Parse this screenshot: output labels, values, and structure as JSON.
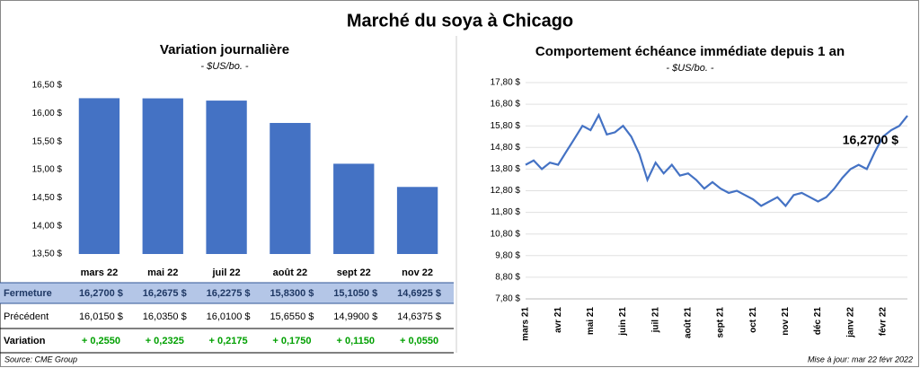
{
  "title": "Marché du soya à Chicago",
  "source": "Source: CME Group",
  "updated": "Mise à jour: mar 22 févr 2022",
  "chart_data": [
    {
      "type": "bar",
      "title": "Variation journalière",
      "subtitle": "- $US/bo. -",
      "categories": [
        "mars 22",
        "mai 22",
        "juil 22",
        "août 22",
        "sept 22",
        "nov 22"
      ],
      "values": [
        16.27,
        16.2675,
        16.2275,
        15.83,
        15.105,
        14.6925
      ],
      "value_labels": [
        "16,2700 $",
        "16,2675 $",
        "16,2275 $",
        "15,8300 $",
        "15,1050 $",
        "14,6925 $"
      ],
      "color": "#4472c4",
      "ylim": [
        13.5,
        16.5
      ],
      "yticks": [
        {
          "value": 13.5,
          "label": "13,50 $"
        },
        {
          "value": 14.0,
          "label": "14,00 $"
        },
        {
          "value": 14.5,
          "label": "14,50 $"
        },
        {
          "value": 15.0,
          "label": "15,00 $"
        },
        {
          "value": 15.5,
          "label": "15,50 $"
        },
        {
          "value": 16.0,
          "label": "16,00 $"
        },
        {
          "value": 16.5,
          "label": "16,50 $"
        }
      ]
    },
    {
      "type": "line",
      "title": "Comportement  échéance immédiate depuis 1 an",
      "subtitle": "- $US/bo. -",
      "annotation": "16,2700 $",
      "categories": [
        "mars 21",
        null,
        null,
        null,
        "avr 21",
        null,
        null,
        null,
        "mai 21",
        null,
        null,
        null,
        "juin 21",
        null,
        null,
        null,
        "juil 21",
        null,
        null,
        null,
        "août 21",
        null,
        null,
        null,
        "sept 21",
        null,
        null,
        null,
        "oct 21",
        null,
        null,
        null,
        "nov 21",
        null,
        null,
        null,
        "déc 21",
        null,
        null,
        null,
        "janv 22",
        null,
        null,
        null,
        "févr 22",
        null,
        null,
        null
      ],
      "values": [
        14.0,
        14.2,
        13.8,
        14.1,
        14.0,
        14.6,
        15.2,
        15.8,
        15.6,
        16.3,
        15.4,
        15.5,
        15.8,
        15.3,
        14.5,
        13.3,
        14.1,
        13.6,
        14.0,
        13.5,
        13.6,
        13.3,
        12.9,
        13.2,
        12.9,
        12.7,
        12.8,
        12.6,
        12.4,
        12.1,
        12.3,
        12.5,
        12.1,
        12.6,
        12.7,
        12.5,
        12.3,
        12.5,
        12.9,
        13.4,
        13.8,
        14.0,
        13.8,
        14.6,
        15.3,
        15.6,
        15.8,
        16.27
      ],
      "color": "#4472c4",
      "ylim": [
        7.8,
        17.8
      ],
      "yticks": [
        {
          "value": 7.8,
          "label": "7,80 $"
        },
        {
          "value": 8.8,
          "label": "8,80 $"
        },
        {
          "value": 9.8,
          "label": "9,80 $"
        },
        {
          "value": 10.8,
          "label": "10,80 $"
        },
        {
          "value": 11.8,
          "label": "11,80 $"
        },
        {
          "value": 12.8,
          "label": "12,80 $"
        },
        {
          "value": 13.8,
          "label": "13,80 $"
        },
        {
          "value": 14.8,
          "label": "14,80 $"
        },
        {
          "value": 15.8,
          "label": "15,80 $"
        },
        {
          "value": 16.8,
          "label": "16,80 $"
        },
        {
          "value": 17.8,
          "label": "17,80 $"
        }
      ]
    }
  ],
  "table": {
    "rows": [
      {
        "label": "Fermeture"
      },
      {
        "label": "Précédent",
        "values": [
          "16,0150 $",
          "16,0350 $",
          "16,0100 $",
          "15,6550 $",
          "14,9900 $",
          "14,6375 $"
        ]
      },
      {
        "label": "Variation",
        "values": [
          "+ 0,2550",
          "+ 0,2325",
          "+ 0,2175",
          "+ 0,1750",
          "+ 0,1150",
          "+ 0,0550"
        ]
      }
    ]
  }
}
